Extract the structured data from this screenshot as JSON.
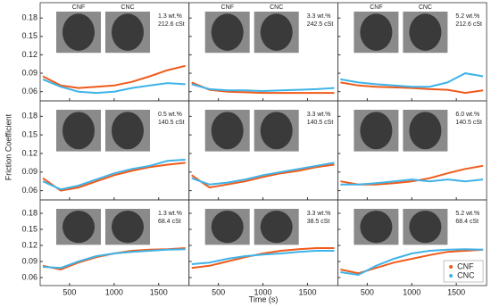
{
  "figure": {
    "ylabel": "Friction Coefficient",
    "xlabel": "Time (s)",
    "image_labels": [
      "CNF",
      "CNC"
    ]
  },
  "chart_data": [
    {
      "type": "line",
      "annotation": [
        "1.3 wt.%",
        "212.6 cSt"
      ],
      "x": [
        200,
        400,
        600,
        800,
        1000,
        1200,
        1400,
        1600,
        1800
      ],
      "xlim": [
        170,
        1840
      ],
      "xticks": [
        500,
        1000,
        1500
      ],
      "ylim": [
        0.045,
        0.205
      ],
      "yticks": [
        0.06,
        0.09,
        0.12,
        0.15,
        0.18
      ],
      "series": [
        {
          "name": "CNF",
          "color": "#f05a1a",
          "values": [
            0.085,
            0.07,
            0.066,
            0.068,
            0.07,
            0.076,
            0.085,
            0.095,
            0.102
          ]
        },
        {
          "name": "CNC",
          "color": "#3fb3e8",
          "values": [
            0.08,
            0.068,
            0.06,
            0.058,
            0.06,
            0.066,
            0.07,
            0.074,
            0.072
          ]
        }
      ]
    },
    {
      "type": "line",
      "annotation": [
        "3.3 wt.%",
        "242.5 cSt"
      ],
      "x": [
        200,
        400,
        600,
        800,
        1000,
        1200,
        1400,
        1600,
        1800
      ],
      "xlim": [
        170,
        1840
      ],
      "xticks": [
        500,
        1000,
        1500
      ],
      "ylim": [
        0.045,
        0.205
      ],
      "yticks": [
        0.06,
        0.09,
        0.12,
        0.15,
        0.18
      ],
      "series": [
        {
          "name": "CNF",
          "color": "#f05a1a",
          "values": [
            0.075,
            0.063,
            0.06,
            0.059,
            0.058,
            0.058,
            0.058,
            0.058,
            0.058
          ]
        },
        {
          "name": "CNC",
          "color": "#3fb3e8",
          "values": [
            0.072,
            0.064,
            0.062,
            0.062,
            0.061,
            0.062,
            0.063,
            0.064,
            0.066
          ]
        }
      ]
    },
    {
      "type": "line",
      "annotation": [
        "5.2 wt.%",
        "212.6 cSt"
      ],
      "x": [
        200,
        400,
        600,
        800,
        1000,
        1200,
        1400,
        1600,
        1800
      ],
      "xlim": [
        170,
        1840
      ],
      "xticks": [
        500,
        1000,
        1500
      ],
      "ylim": [
        0.045,
        0.205
      ],
      "yticks": [
        0.06,
        0.09,
        0.12,
        0.15,
        0.18
      ],
      "series": [
        {
          "name": "CNF",
          "color": "#f05a1a",
          "values": [
            0.075,
            0.07,
            0.068,
            0.067,
            0.066,
            0.064,
            0.063,
            0.058,
            0.062
          ]
        },
        {
          "name": "CNC",
          "color": "#3fb3e8",
          "values": [
            0.08,
            0.075,
            0.072,
            0.07,
            0.068,
            0.068,
            0.075,
            0.09,
            0.085
          ]
        }
      ]
    },
    {
      "type": "line",
      "annotation": [
        "0.5 wt.%",
        "140.5 cSt"
      ],
      "x": [
        200,
        400,
        600,
        800,
        1000,
        1200,
        1400,
        1600,
        1800
      ],
      "xlim": [
        170,
        1840
      ],
      "xticks": [
        500,
        1000,
        1500
      ],
      "ylim": [
        0.045,
        0.205
      ],
      "yticks": [
        0.06,
        0.09,
        0.12,
        0.15,
        0.18
      ],
      "series": [
        {
          "name": "CNF",
          "color": "#f05a1a",
          "values": [
            0.08,
            0.06,
            0.065,
            0.075,
            0.085,
            0.092,
            0.098,
            0.102,
            0.105
          ]
        },
        {
          "name": "CNC",
          "color": "#3fb3e8",
          "values": [
            0.075,
            0.062,
            0.068,
            0.078,
            0.088,
            0.095,
            0.1,
            0.108,
            0.11
          ]
        }
      ]
    },
    {
      "type": "line",
      "annotation": [
        "3.3 wt.%",
        "140.5 cSt"
      ],
      "x": [
        200,
        400,
        600,
        800,
        1000,
        1200,
        1400,
        1600,
        1800
      ],
      "xlim": [
        170,
        1840
      ],
      "xticks": [
        500,
        1000,
        1500
      ],
      "ylim": [
        0.045,
        0.205
      ],
      "yticks": [
        0.06,
        0.09,
        0.12,
        0.15,
        0.18
      ],
      "series": [
        {
          "name": "CNF",
          "color": "#f05a1a",
          "values": [
            0.085,
            0.065,
            0.07,
            0.075,
            0.082,
            0.088,
            0.092,
            0.098,
            0.102
          ]
        },
        {
          "name": "CNC",
          "color": "#3fb3e8",
          "values": [
            0.08,
            0.07,
            0.073,
            0.078,
            0.085,
            0.09,
            0.095,
            0.1,
            0.105
          ]
        }
      ]
    },
    {
      "type": "line",
      "annotation": [
        "6.0 wt.%",
        "140.5 cSt"
      ],
      "x": [
        200,
        400,
        600,
        800,
        1000,
        1200,
        1400,
        1600,
        1800
      ],
      "xlim": [
        170,
        1840
      ],
      "xticks": [
        500,
        1000,
        1500
      ],
      "ylim": [
        0.045,
        0.205
      ],
      "yticks": [
        0.06,
        0.09,
        0.12,
        0.15,
        0.18
      ],
      "series": [
        {
          "name": "CNF",
          "color": "#f05a1a",
          "values": [
            0.075,
            0.07,
            0.07,
            0.072,
            0.075,
            0.08,
            0.088,
            0.095,
            0.1
          ]
        },
        {
          "name": "CNC",
          "color": "#3fb3e8",
          "values": [
            0.07,
            0.07,
            0.072,
            0.075,
            0.078,
            0.075,
            0.078,
            0.075,
            0.078
          ]
        }
      ]
    },
    {
      "type": "line",
      "annotation": [
        "1.3 wt.%",
        "68.4 cSt"
      ],
      "x": [
        200,
        400,
        600,
        800,
        1000,
        1200,
        1400,
        1600,
        1800
      ],
      "xlim": [
        170,
        1840
      ],
      "xticks": [
        500,
        1000,
        1500
      ],
      "ylim": [
        0.045,
        0.205
      ],
      "yticks": [
        0.06,
        0.09,
        0.12,
        0.15,
        0.18
      ],
      "series": [
        {
          "name": "CNF",
          "color": "#f05a1a",
          "values": [
            0.082,
            0.075,
            0.088,
            0.098,
            0.105,
            0.11,
            0.112,
            0.113,
            0.115
          ]
        },
        {
          "name": "CNC",
          "color": "#3fb3e8",
          "values": [
            0.08,
            0.078,
            0.09,
            0.1,
            0.105,
            0.108,
            0.11,
            0.112,
            0.113
          ]
        }
      ]
    },
    {
      "type": "line",
      "annotation": [
        "3.3 wt.%",
        "38.5 cSt"
      ],
      "x": [
        200,
        400,
        600,
        800,
        1000,
        1200,
        1400,
        1600,
        1800
      ],
      "xlim": [
        170,
        1840
      ],
      "xticks": [
        500,
        1000,
        1500
      ],
      "ylim": [
        0.045,
        0.205
      ],
      "yticks": [
        0.06,
        0.09,
        0.12,
        0.15,
        0.18
      ],
      "series": [
        {
          "name": "CNF",
          "color": "#f05a1a",
          "values": [
            0.078,
            0.082,
            0.09,
            0.098,
            0.105,
            0.11,
            0.113,
            0.115,
            0.115
          ]
        },
        {
          "name": "CNC",
          "color": "#3fb3e8",
          "values": [
            0.085,
            0.088,
            0.095,
            0.1,
            0.103,
            0.105,
            0.108,
            0.11,
            0.11
          ]
        }
      ]
    },
    {
      "type": "line",
      "annotation": [
        "5.2 wt.%",
        "68.4 cSt"
      ],
      "x": [
        200,
        400,
        600,
        800,
        1000,
        1200,
        1400,
        1600,
        1800
      ],
      "xlim": [
        170,
        1840
      ],
      "xticks": [
        500,
        1000,
        1500
      ],
      "ylim": [
        0.045,
        0.205
      ],
      "yticks": [
        0.06,
        0.09,
        0.12,
        0.15,
        0.18
      ],
      "legend": "lower right",
      "series": [
        {
          "name": "CNF",
          "color": "#f05a1a",
          "values": [
            0.075,
            0.068,
            0.078,
            0.088,
            0.095,
            0.102,
            0.108,
            0.11,
            0.112
          ]
        },
        {
          "name": "CNC",
          "color": "#3fb3e8",
          "values": [
            0.07,
            0.065,
            0.082,
            0.095,
            0.105,
            0.11,
            0.112,
            0.113,
            0.112
          ]
        }
      ]
    }
  ]
}
